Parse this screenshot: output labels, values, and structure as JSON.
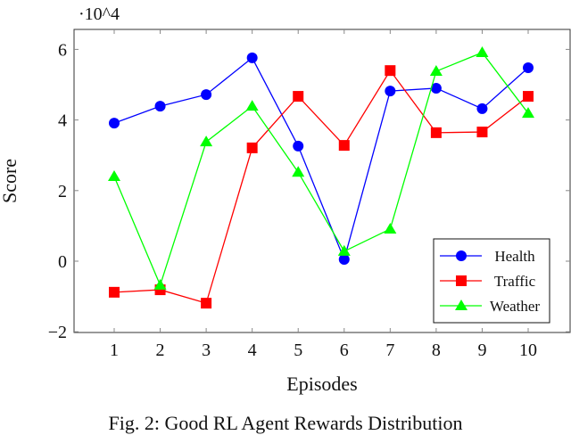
{
  "chart_data": {
    "type": "line",
    "xlabel": "Episodes",
    "ylabel": "Score",
    "y_scale_label": "·10^4",
    "y_multiplier": 10000,
    "x": [
      1,
      2,
      3,
      4,
      5,
      6,
      7,
      8,
      9,
      10
    ],
    "xticks": [
      "1",
      "2",
      "3",
      "4",
      "5",
      "6",
      "7",
      "8",
      "9",
      "10"
    ],
    "yticks": [
      -2,
      0,
      2,
      4,
      6
    ],
    "ytick_labels": [
      "−2",
      "0",
      "2",
      "4",
      "6"
    ],
    "xlim": [
      0.1,
      10.9
    ],
    "ylim": [
      -2.0,
      6.5
    ],
    "grid": false,
    "legend_position": "bottom-right",
    "series": [
      {
        "name": "Health",
        "color": "#0000ff",
        "marker": "circle",
        "values": [
          3.91,
          4.39,
          4.72,
          5.76,
          3.26,
          0.05,
          4.82,
          4.9,
          4.32,
          5.48
        ]
      },
      {
        "name": "Traffic",
        "color": "#ff0000",
        "marker": "square",
        "values": [
          -0.88,
          -0.81,
          -1.19,
          3.21,
          4.67,
          3.28,
          5.4,
          3.64,
          3.66,
          4.67
        ]
      },
      {
        "name": "Weather",
        "color": "#00ff00",
        "marker": "triangle",
        "values": [
          2.4,
          -0.68,
          3.38,
          4.39,
          2.52,
          0.28,
          0.91,
          5.38,
          5.91,
          4.19
        ]
      }
    ]
  },
  "caption": "Fig. 2: Good RL Agent Rewards Distribution"
}
